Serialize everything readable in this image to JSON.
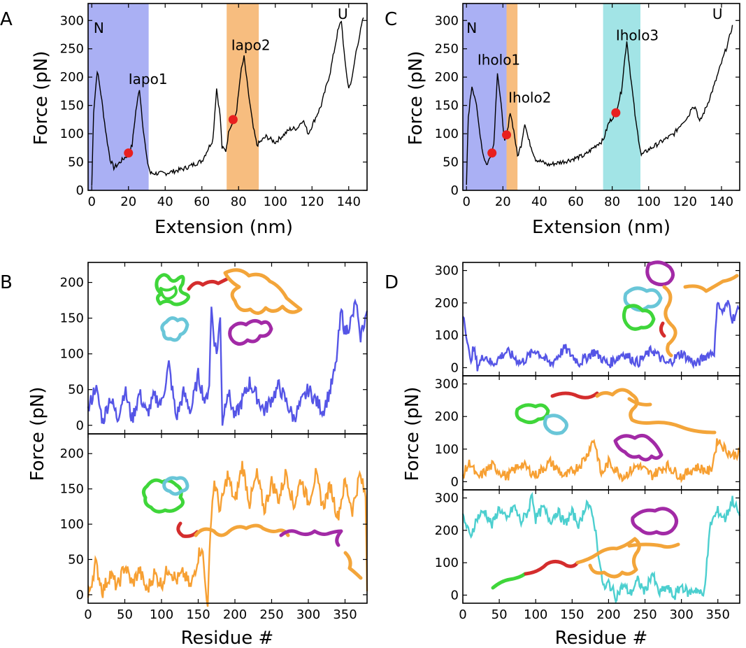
{
  "chart_data": [
    {
      "panel": "A",
      "type": "line",
      "xlabel": "Extension (nm)",
      "ylabel": "Force (pN)",
      "xlim": [
        -2,
        150
      ],
      "ylim": [
        0,
        330
      ],
      "xticks": [
        "0",
        "20",
        "40",
        "60",
        "80",
        "100",
        "120",
        "140"
      ],
      "yticks": [
        "0",
        "50",
        "100",
        "150",
        "200",
        "250",
        "300"
      ],
      "regions": [
        {
          "x0": -2,
          "x1": 31,
          "color": "#aab0f4"
        },
        {
          "x0": 73.5,
          "x1": 91,
          "color": "#f7bd7f"
        }
      ],
      "annotations": [
        {
          "text": "N",
          "x": 1,
          "y": 278
        },
        {
          "text": "Iapo1",
          "x": 20,
          "y": 188
        },
        {
          "text": "Iapo2",
          "x": 76,
          "y": 248
        },
        {
          "text": "U",
          "x": 134,
          "y": 303
        }
      ],
      "markers": [
        {
          "x": 20,
          "y": 66
        },
        {
          "x": 77,
          "y": 125
        }
      ],
      "trace": [
        [
          0,
          8
        ],
        [
          1,
          140
        ],
        [
          3,
          212
        ],
        [
          5,
          170
        ],
        [
          8,
          95
        ],
        [
          10,
          55
        ],
        [
          12,
          40
        ],
        [
          14,
          45
        ],
        [
          16,
          52
        ],
        [
          18,
          58
        ],
        [
          20,
          64
        ],
        [
          22,
          80
        ],
        [
          24,
          140
        ],
        [
          26,
          180
        ],
        [
          28,
          110
        ],
        [
          30,
          55
        ],
        [
          32,
          30
        ],
        [
          40,
          30
        ],
        [
          50,
          38
        ],
        [
          60,
          52
        ],
        [
          66,
          90
        ],
        [
          68,
          180
        ],
        [
          70,
          130
        ],
        [
          71,
          75
        ],
        [
          73,
          70
        ],
        [
          75,
          110
        ],
        [
          77,
          122
        ],
        [
          79,
          140
        ],
        [
          81,
          205
        ],
        [
          83,
          235
        ],
        [
          85,
          180
        ],
        [
          88,
          110
        ],
        [
          90,
          80
        ],
        [
          95,
          95
        ],
        [
          100,
          85
        ],
        [
          108,
          108
        ],
        [
          112,
          110
        ],
        [
          115,
          125
        ],
        [
          118,
          100
        ],
        [
          125,
          150
        ],
        [
          130,
          210
        ],
        [
          134,
          280
        ],
        [
          136,
          300
        ],
        [
          138,
          225
        ],
        [
          140,
          180
        ],
        [
          142,
          200
        ],
        [
          144,
          245
        ],
        [
          146,
          275
        ],
        [
          148,
          305
        ]
      ]
    },
    {
      "panel": "C",
      "type": "line",
      "xlabel": "Extension (nm)",
      "ylabel": "Force (pN)",
      "xlim": [
        -2,
        150
      ],
      "ylim": [
        0,
        330
      ],
      "xticks": [
        "0",
        "20",
        "40",
        "60",
        "80",
        "100",
        "120",
        "140"
      ],
      "yticks": [
        "0",
        "50",
        "100",
        "150",
        "200",
        "250",
        "300"
      ],
      "regions": [
        {
          "x0": -2,
          "x1": 22,
          "color": "#aab0f4"
        },
        {
          "x0": 22,
          "x1": 28,
          "color": "#f7bd7f"
        },
        {
          "x0": 75,
          "x1": 95.5,
          "color": "#a2e4e6"
        }
      ],
      "annotations": [
        {
          "text": "N",
          "x": 0,
          "y": 278
        },
        {
          "text": "Iholo1",
          "x": 6,
          "y": 222
        },
        {
          "text": "Iholo2",
          "x": 23,
          "y": 155
        },
        {
          "text": "Iholo3",
          "x": 82,
          "y": 265
        },
        {
          "text": "U",
          "x": 135,
          "y": 303
        }
      ],
      "markers": [
        {
          "x": 14,
          "y": 66
        },
        {
          "x": 22,
          "y": 98
        },
        {
          "x": 82,
          "y": 137
        }
      ],
      "trace": [
        [
          0,
          10
        ],
        [
          1,
          130
        ],
        [
          3,
          185
        ],
        [
          5,
          160
        ],
        [
          7,
          110
        ],
        [
          9,
          65
        ],
        [
          11,
          45
        ],
        [
          13,
          58
        ],
        [
          15,
          82
        ],
        [
          17,
          210
        ],
        [
          19,
          150
        ],
        [
          21,
          85
        ],
        [
          22,
          98
        ],
        [
          23,
          112
        ],
        [
          24,
          140
        ],
        [
          26,
          105
        ],
        [
          28,
          60
        ],
        [
          30,
          80
        ],
        [
          32,
          120
        ],
        [
          34,
          90
        ],
        [
          38,
          55
        ],
        [
          45,
          45
        ],
        [
          55,
          52
        ],
        [
          65,
          62
        ],
        [
          72,
          82
        ],
        [
          75,
          88
        ],
        [
          78,
          118
        ],
        [
          82,
          138
        ],
        [
          85,
          175
        ],
        [
          88,
          265
        ],
        [
          90,
          205
        ],
        [
          93,
          120
        ],
        [
          96,
          62
        ],
        [
          100,
          72
        ],
        [
          108,
          88
        ],
        [
          114,
          100
        ],
        [
          118,
          118
        ],
        [
          122,
          132
        ],
        [
          124,
          150
        ],
        [
          126,
          145
        ],
        [
          128,
          120
        ],
        [
          132,
          150
        ],
        [
          136,
          185
        ],
        [
          140,
          225
        ],
        [
          144,
          265
        ],
        [
          146,
          292
        ]
      ]
    },
    {
      "panel": "B-top",
      "type": "line",
      "color": "#5555e6",
      "xlim": [
        0,
        380
      ],
      "ylim": [
        -12,
        228
      ],
      "yticks": [
        "0",
        "50",
        "100",
        "150",
        "200"
      ],
      "trace": [
        [
          0,
          20
        ],
        [
          10,
          55
        ],
        [
          20,
          5
        ],
        [
          30,
          40
        ],
        [
          40,
          10
        ],
        [
          50,
          50
        ],
        [
          60,
          8
        ],
        [
          70,
          45
        ],
        [
          80,
          15
        ],
        [
          90,
          40
        ],
        [
          100,
          30
        ],
        [
          110,
          85
        ],
        [
          120,
          10
        ],
        [
          130,
          45
        ],
        [
          140,
          20
        ],
        [
          150,
          70
        ],
        [
          160,
          30
        ],
        [
          165,
          60
        ],
        [
          168,
          165
        ],
        [
          172,
          120
        ],
        [
          175,
          100
        ],
        [
          180,
          150
        ],
        [
          183,
          5
        ],
        [
          190,
          50
        ],
        [
          200,
          10
        ],
        [
          220,
          60
        ],
        [
          240,
          20
        ],
        [
          260,
          55
        ],
        [
          280,
          10
        ],
        [
          300,
          50
        ],
        [
          320,
          20
        ],
        [
          330,
          50
        ],
        [
          337,
          80
        ],
        [
          340,
          110
        ],
        [
          345,
          160
        ],
        [
          350,
          130
        ],
        [
          360,
          150
        ],
        [
          365,
          175
        ],
        [
          370,
          120
        ],
        [
          380,
          160
        ]
      ]
    },
    {
      "panel": "B-bottom",
      "type": "line",
      "color": "#f7a033",
      "xlabel": "Residue #",
      "xlim": [
        0,
        380
      ],
      "ylim": [
        -12,
        228
      ],
      "xticks": [
        "0",
        "50",
        "100",
        "150",
        "200",
        "250",
        "300",
        "350"
      ],
      "yticks": [
        "0",
        "50",
        "100",
        "150",
        "200"
      ],
      "trace": [
        [
          0,
          -5
        ],
        [
          10,
          45
        ],
        [
          20,
          5
        ],
        [
          30,
          30
        ],
        [
          40,
          10
        ],
        [
          50,
          42
        ],
        [
          60,
          15
        ],
        [
          70,
          35
        ],
        [
          80,
          5
        ],
        [
          90,
          30
        ],
        [
          100,
          15
        ],
        [
          110,
          40
        ],
        [
          120,
          20
        ],
        [
          130,
          30
        ],
        [
          140,
          10
        ],
        [
          150,
          55
        ],
        [
          155,
          70
        ],
        [
          160,
          10
        ],
        [
          163,
          -10
        ],
        [
          168,
          120
        ],
        [
          172,
          160
        ],
        [
          180,
          120
        ],
        [
          190,
          170
        ],
        [
          200,
          130
        ],
        [
          210,
          185
        ],
        [
          220,
          130
        ],
        [
          230,
          170
        ],
        [
          240,
          120
        ],
        [
          250,
          160
        ],
        [
          260,
          135
        ],
        [
          270,
          175
        ],
        [
          280,
          125
        ],
        [
          290,
          165
        ],
        [
          300,
          130
        ],
        [
          310,
          170
        ],
        [
          320,
          125
        ],
        [
          330,
          155
        ],
        [
          340,
          110
        ],
        [
          350,
          160
        ],
        [
          360,
          120
        ],
        [
          370,
          170
        ],
        [
          378,
          140
        ],
        [
          380,
          5
        ]
      ]
    },
    {
      "panel": "D-top",
      "type": "line",
      "color": "#5555e6",
      "xlim": [
        0,
        380
      ],
      "ylim": [
        -25,
        325
      ],
      "yticks": [
        "0",
        "100",
        "200",
        "300"
      ],
      "trace": [
        [
          0,
          170
        ],
        [
          3,
          140
        ],
        [
          6,
          80
        ],
        [
          10,
          20
        ],
        [
          15,
          60
        ],
        [
          20,
          5
        ],
        [
          30,
          40
        ],
        [
          40,
          10
        ],
        [
          60,
          50
        ],
        [
          80,
          15
        ],
        [
          100,
          55
        ],
        [
          120,
          10
        ],
        [
          140,
          60
        ],
        [
          160,
          15
        ],
        [
          180,
          50
        ],
        [
          200,
          10
        ],
        [
          220,
          45
        ],
        [
          240,
          15
        ],
        [
          260,
          55
        ],
        [
          280,
          10
        ],
        [
          300,
          45
        ],
        [
          320,
          10
        ],
        [
          335,
          40
        ],
        [
          345,
          50
        ],
        [
          348,
          150
        ],
        [
          350,
          215
        ],
        [
          355,
          170
        ],
        [
          365,
          200
        ],
        [
          370,
          150
        ],
        [
          380,
          185
        ]
      ]
    },
    {
      "panel": "D-middle",
      "type": "line",
      "color": "#f7a033",
      "ylabel": "Force (pN)",
      "xlim": [
        0,
        380
      ],
      "ylim": [
        -25,
        325
      ],
      "yticks": [
        "0",
        "100",
        "200",
        "300"
      ],
      "trace": [
        [
          0,
          20
        ],
        [
          10,
          60
        ],
        [
          20,
          10
        ],
        [
          40,
          50
        ],
        [
          60,
          15
        ],
        [
          80,
          55
        ],
        [
          100,
          20
        ],
        [
          120,
          60
        ],
        [
          140,
          15
        ],
        [
          160,
          50
        ],
        [
          170,
          80
        ],
        [
          175,
          110
        ],
        [
          180,
          130
        ],
        [
          185,
          80
        ],
        [
          190,
          20
        ],
        [
          200,
          60
        ],
        [
          220,
          15
        ],
        [
          240,
          50
        ],
        [
          260,
          20
        ],
        [
          280,
          50
        ],
        [
          300,
          15
        ],
        [
          320,
          45
        ],
        [
          340,
          30
        ],
        [
          345,
          80
        ],
        [
          350,
          130
        ],
        [
          360,
          100
        ],
        [
          370,
          80
        ],
        [
          380,
          90
        ]
      ]
    },
    {
      "panel": "D-bottom",
      "type": "line",
      "color": "#4ccfcf",
      "xlabel": "Residue #",
      "xlim": [
        0,
        380
      ],
      "ylim": [
        -25,
        325
      ],
      "xticks": [
        "0",
        "50",
        "100",
        "150",
        "200",
        "250",
        "300",
        "350"
      ],
      "yticks": [
        "0",
        "100",
        "200",
        "300"
      ],
      "trace": [
        [
          0,
          245
        ],
        [
          10,
          180
        ],
        [
          20,
          240
        ],
        [
          30,
          260
        ],
        [
          40,
          215
        ],
        [
          50,
          270
        ],
        [
          60,
          230
        ],
        [
          70,
          275
        ],
        [
          80,
          225
        ],
        [
          90,
          260
        ],
        [
          95,
          315
        ],
        [
          100,
          235
        ],
        [
          110,
          270
        ],
        [
          120,
          230
        ],
        [
          130,
          260
        ],
        [
          140,
          220
        ],
        [
          150,
          255
        ],
        [
          160,
          215
        ],
        [
          170,
          290
        ],
        [
          180,
          230
        ],
        [
          185,
          150
        ],
        [
          190,
          60
        ],
        [
          195,
          15
        ],
        [
          200,
          40
        ],
        [
          210,
          -5
        ],
        [
          220,
          30
        ],
        [
          230,
          5
        ],
        [
          240,
          45
        ],
        [
          250,
          10
        ],
        [
          260,
          70
        ],
        [
          265,
          30
        ],
        [
          270,
          5
        ],
        [
          280,
          25
        ],
        [
          290,
          -5
        ],
        [
          300,
          30
        ],
        [
          310,
          5
        ],
        [
          320,
          20
        ],
        [
          330,
          -5
        ],
        [
          335,
          100
        ],
        [
          340,
          220
        ],
        [
          350,
          260
        ],
        [
          360,
          235
        ],
        [
          370,
          295
        ],
        [
          380,
          245
        ]
      ]
    }
  ],
  "panel_labels": {
    "a": "A",
    "b": "B",
    "c": "C",
    "d": "D"
  },
  "axis_text": {
    "a_xlabel": "Extension (nm)",
    "a_ylabel": "Force (pN)",
    "c_xlabel": "Extension (nm)",
    "c_ylabel": "Force (pN)",
    "b_xlabel": "Residue #",
    "b_ylabel": "Force (pN)",
    "d_xlabel": "Residue #",
    "d_ylabel": "Force (pN)"
  },
  "colors": {
    "marker": "#e8201f",
    "blue_region": "#aab0f4",
    "orange_region": "#f7bd7f",
    "cyan_region": "#a2e4e6",
    "protein_green": "#3fd63a",
    "protein_cyan": "#69c6d8",
    "protein_red": "#d42d2d",
    "protein_orange": "#f3a53a",
    "protein_purple": "#a22aa6"
  }
}
